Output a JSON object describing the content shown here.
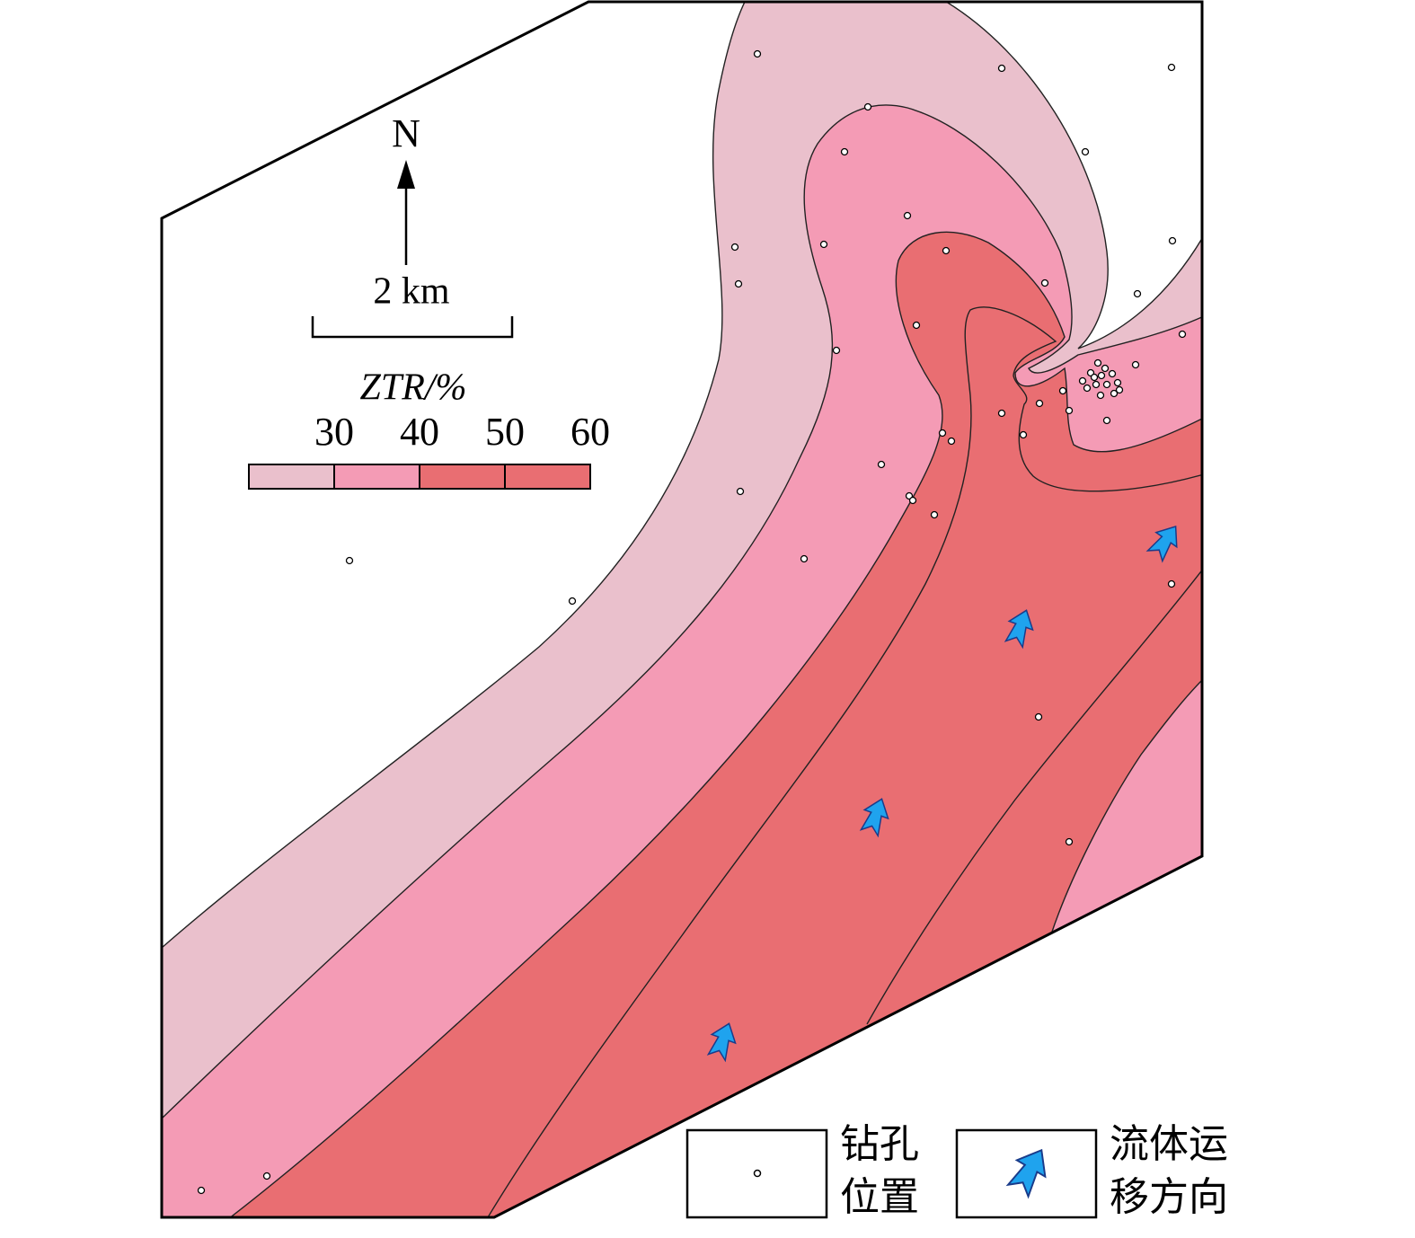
{
  "north_label": "N",
  "scale_label": "2 km",
  "legend": {
    "title": "ZTR/%",
    "ticks": [
      30,
      40,
      50,
      60
    ],
    "colors": [
      "#eac0cc",
      "#f49bb5",
      "#e96e72",
      "#e96e72"
    ]
  },
  "symbol_legend": [
    {
      "label_lines": [
        "钻孔",
        "位置"
      ]
    },
    {
      "label_lines": [
        "流体运",
        "移方向"
      ]
    }
  ]
}
